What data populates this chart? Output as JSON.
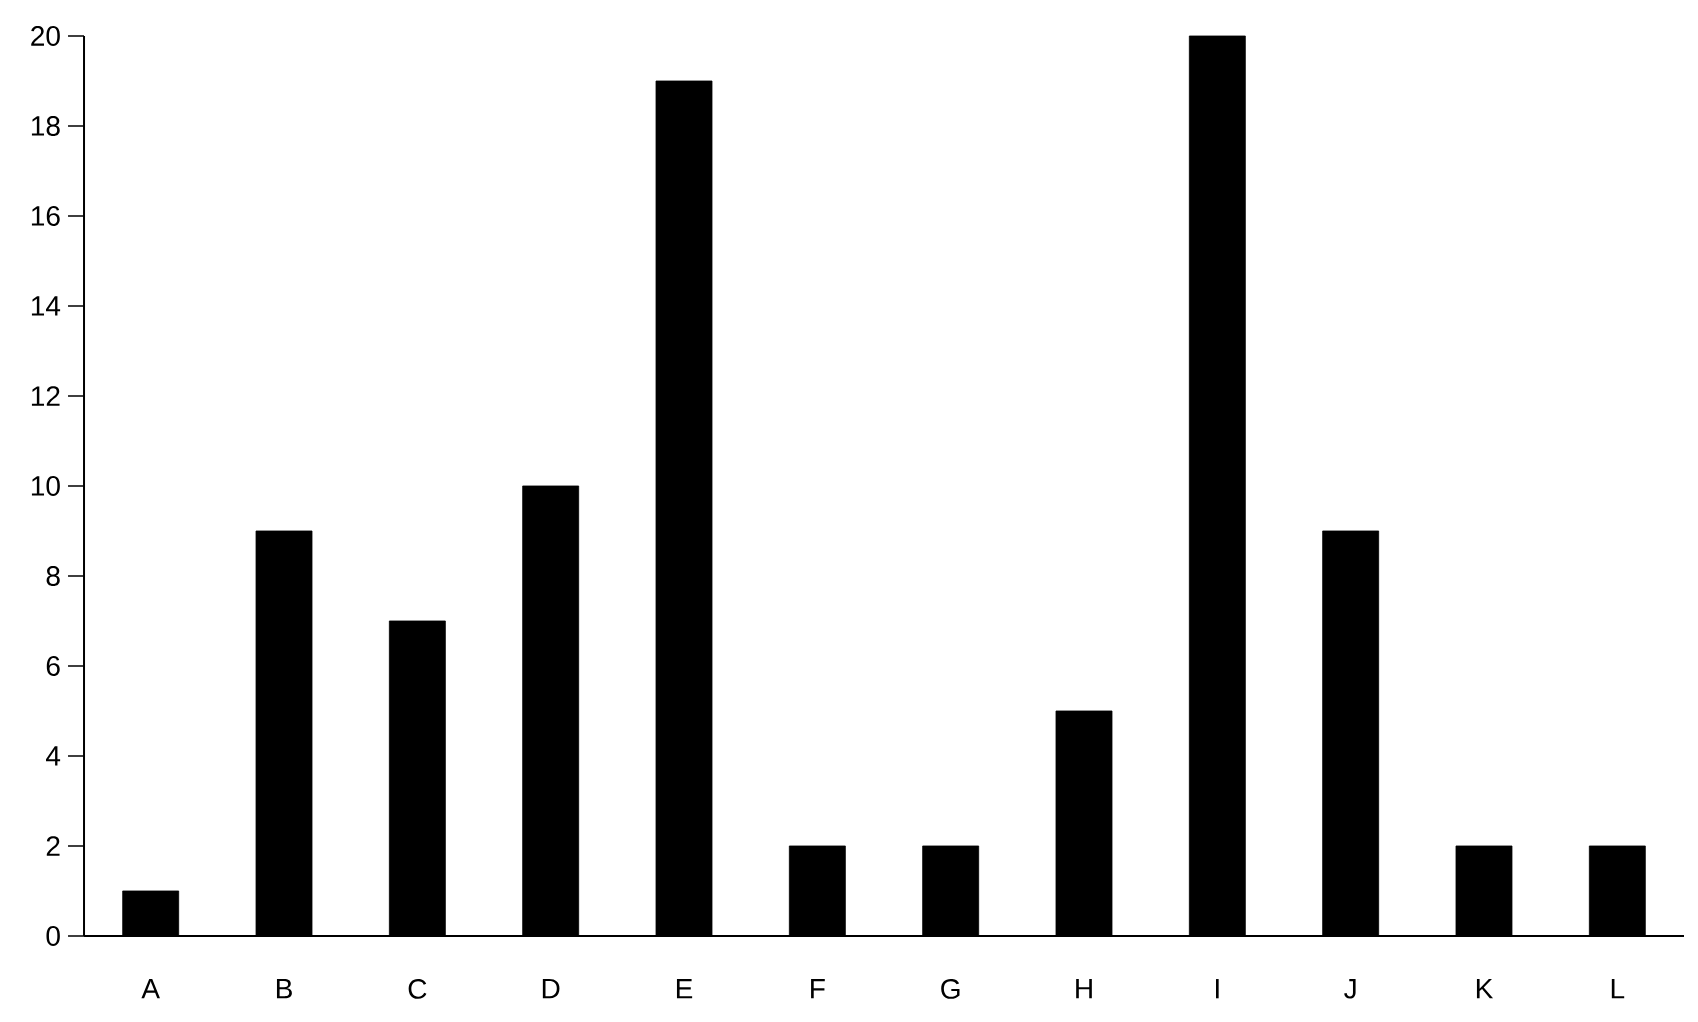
{
  "chart_data": {
    "type": "bar",
    "categories": [
      "A",
      "B",
      "C",
      "D",
      "E",
      "F",
      "G",
      "H",
      "I",
      "J",
      "K",
      "L"
    ],
    "values": [
      1,
      9,
      7,
      10,
      19,
      2,
      2,
      5,
      20,
      9,
      2,
      2
    ],
    "color": "#000000",
    "ylim": [
      0,
      20
    ],
    "yticks": [
      0,
      2,
      4,
      6,
      8,
      10,
      12,
      14,
      16,
      18,
      20
    ],
    "grid": false
  }
}
